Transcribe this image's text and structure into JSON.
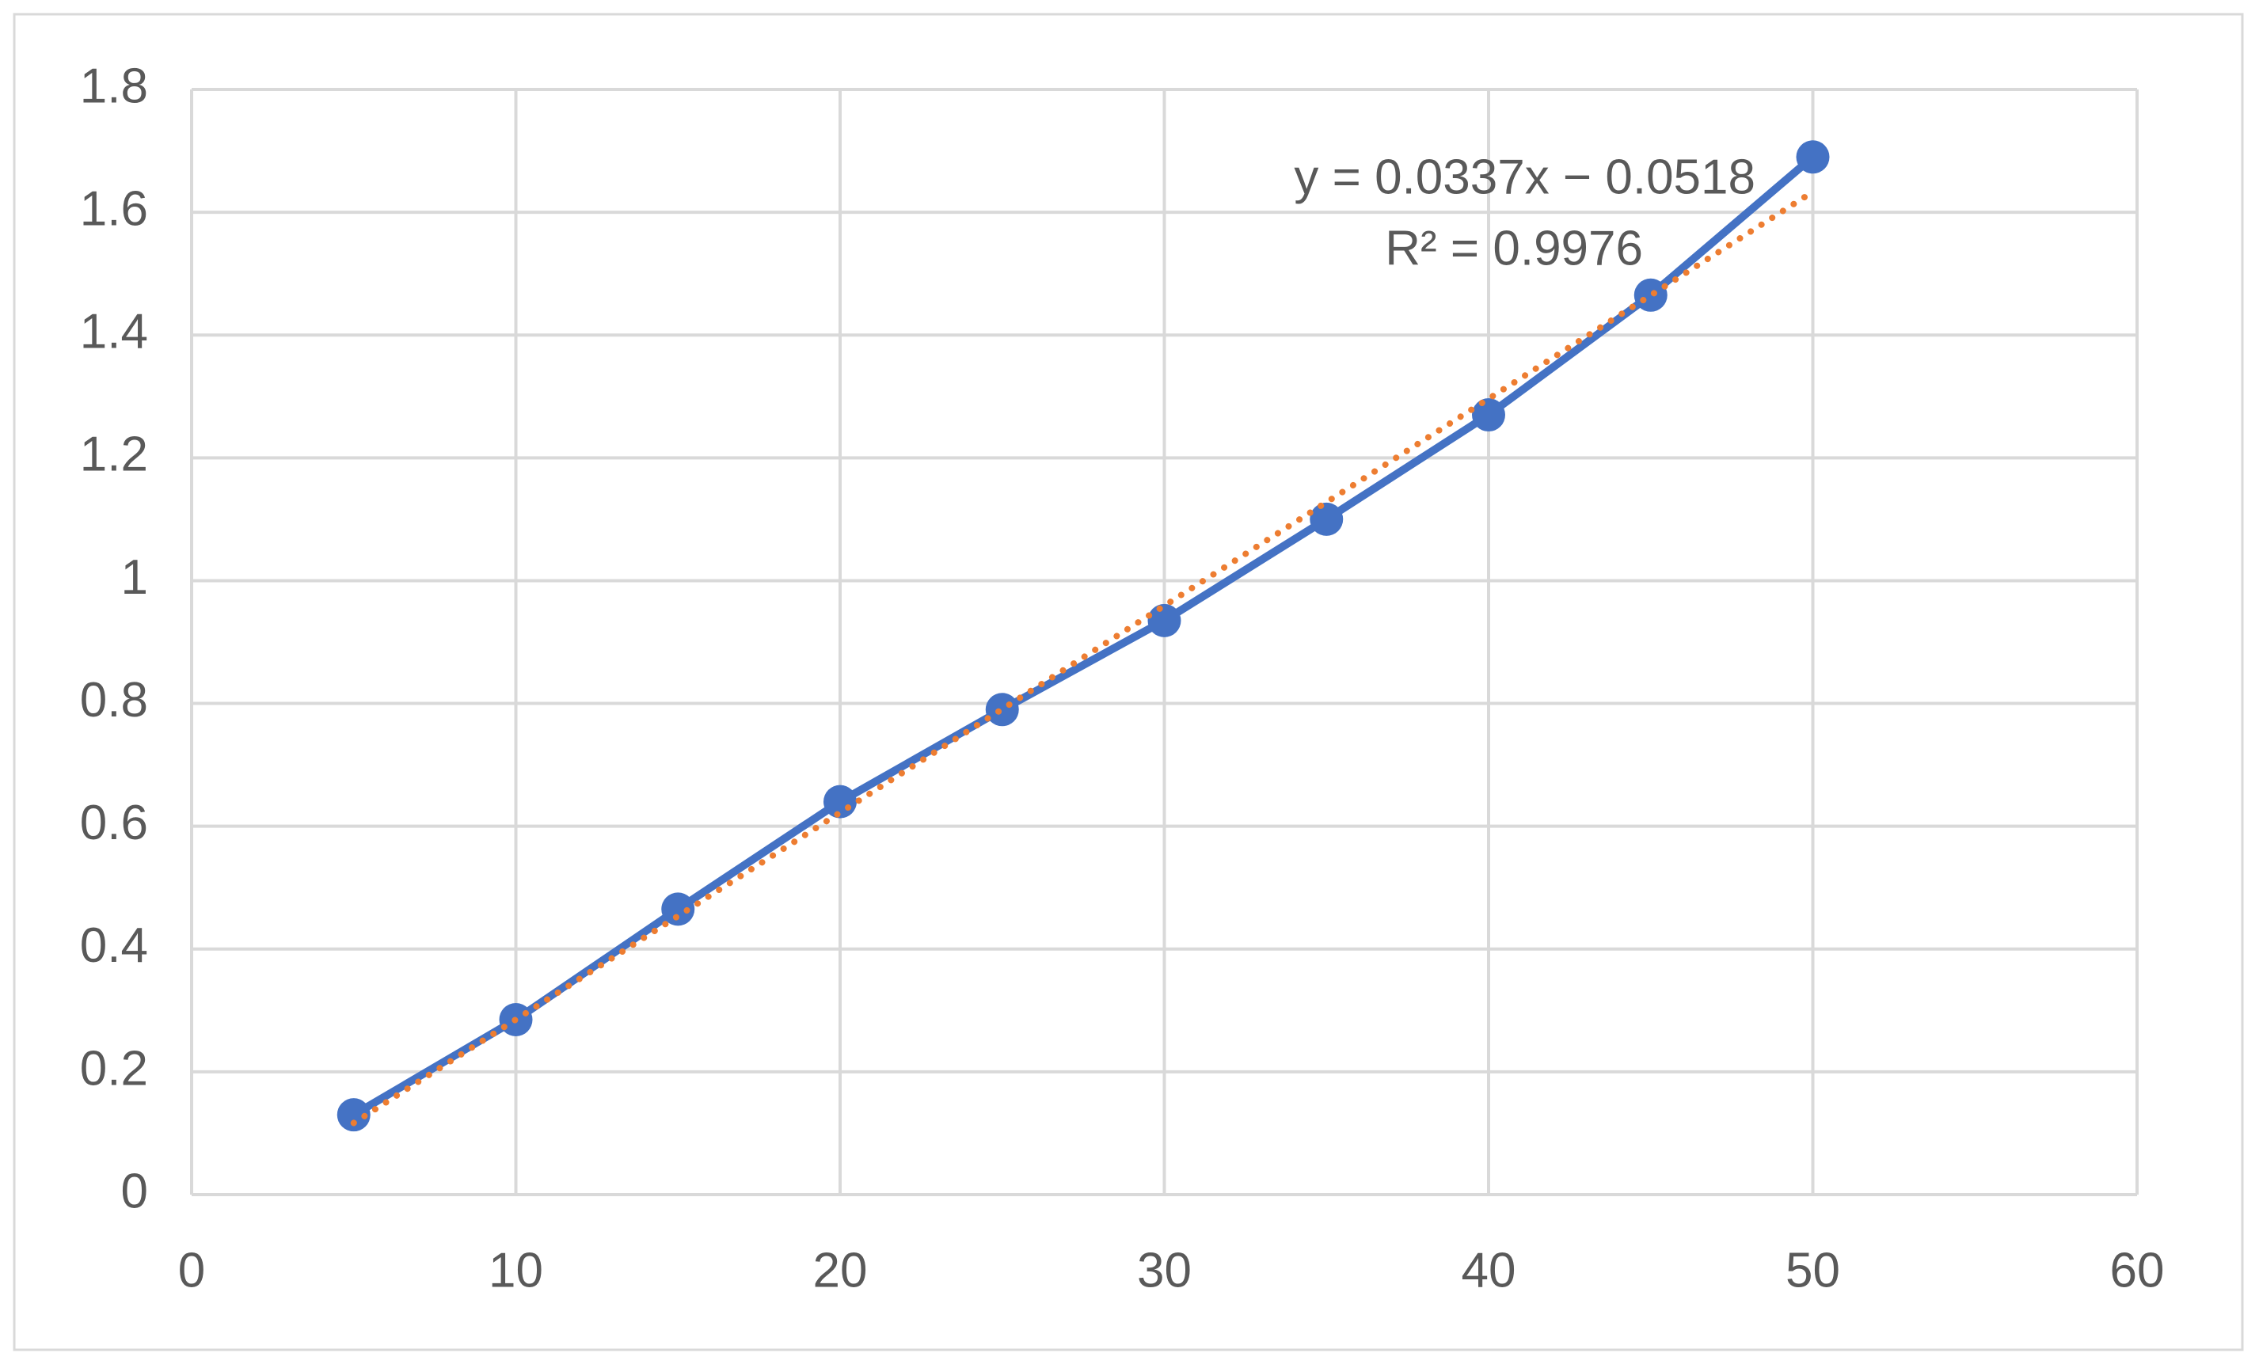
{
  "chart_data": {
    "type": "scatter-line",
    "x": [
      5,
      10,
      15,
      20,
      25,
      30,
      35,
      40,
      45,
      50
    ],
    "series": [
      {
        "color": "#4472c4",
        "values": [
          0.13,
          0.285,
          0.465,
          0.64,
          0.79,
          0.935,
          1.1,
          1.27,
          1.465,
          1.69
        ]
      }
    ],
    "trendline": {
      "color": "#ed7d31",
      "style": "dotted",
      "x": [
        5,
        50
      ],
      "values": [
        0.1167,
        1.6332
      ]
    },
    "annotations": [
      "y = 0.0337x − 0.0518",
      "R² = 0.9976"
    ],
    "xlim": [
      0,
      60
    ],
    "xticks": [
      0,
      10,
      20,
      30,
      40,
      50,
      60
    ],
    "ylim": [
      0,
      1.8
    ],
    "yticks": [
      0,
      0.2,
      0.4,
      0.6,
      0.8,
      1,
      1.2,
      1.4,
      1.6,
      1.8
    ],
    "grid": true
  }
}
